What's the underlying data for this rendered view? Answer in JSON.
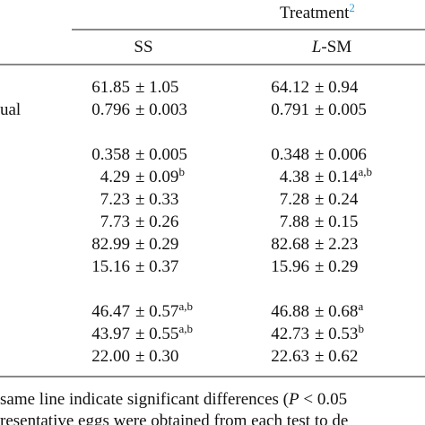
{
  "header": {
    "group": "Treatment",
    "group_note": "2",
    "columns": [
      {
        "prefix": null,
        "text": "SS"
      },
      {
        "prefix": "L",
        "text": "-SM"
      }
    ]
  },
  "sections": [
    [
      {
        "label": null,
        "cells": [
          {
            "mean": "61.85",
            "sd": "± 1.05",
            "sup": null
          },
          {
            "mean": "64.12",
            "sd": "± 0.94",
            "sup": null
          }
        ]
      },
      {
        "label": "ual",
        "cells": [
          {
            "mean": "0.796",
            "sd": "± 0.003",
            "sup": null
          },
          {
            "mean": "0.791",
            "sd": "± 0.005",
            "sup": null
          }
        ]
      }
    ],
    [
      {
        "label": null,
        "cells": [
          {
            "mean": "0.358",
            "sd": "± 0.005",
            "sup": null
          },
          {
            "mean": "0.348",
            "sd": "± 0.006",
            "sup": null
          }
        ]
      },
      {
        "label": null,
        "cells": [
          {
            "mean": "4.29",
            "sd": "± 0.09",
            "sup": "b"
          },
          {
            "mean": "4.38",
            "sd": "± 0.14",
            "sup": "a,b"
          }
        ]
      },
      {
        "label": null,
        "cells": [
          {
            "mean": "7.23",
            "sd": "± 0.33",
            "sup": null
          },
          {
            "mean": "7.28",
            "sd": "± 0.24",
            "sup": null
          }
        ]
      },
      {
        "label": null,
        "cells": [
          {
            "mean": "7.73",
            "sd": "± 0.26",
            "sup": null
          },
          {
            "mean": "7.88",
            "sd": "± 0.15",
            "sup": null
          }
        ]
      },
      {
        "label": null,
        "cells": [
          {
            "mean": "82.99",
            "sd": "± 0.29",
            "sup": null
          },
          {
            "mean": "82.68",
            "sd": "± 2.23",
            "sup": null
          }
        ]
      },
      {
        "label": null,
        "cells": [
          {
            "mean": "15.16",
            "sd": "± 0.37",
            "sup": null
          },
          {
            "mean": "15.96",
            "sd": "± 0.29",
            "sup": null
          }
        ]
      }
    ],
    [
      {
        "label": null,
        "cells": [
          {
            "mean": "46.47",
            "sd": "± 0.57",
            "sup": "a,b"
          },
          {
            "mean": "46.88",
            "sd": "± 0.68",
            "sup": "a"
          }
        ]
      },
      {
        "label": null,
        "cells": [
          {
            "mean": "43.97",
            "sd": "± 0.55",
            "sup": "a,b"
          },
          {
            "mean": "42.73",
            "sd": "± 0.53",
            "sup": "b"
          }
        ]
      },
      {
        "label": null,
        "cells": [
          {
            "mean": "22.00",
            "sd": "± 0.30",
            "sup": null
          },
          {
            "mean": "22.63",
            "sd": "± 0.62",
            "sup": null
          }
        ]
      }
    ]
  ],
  "footnote": [
    {
      "before": "same line indicate significant differences (",
      "italic": "P",
      "after": " < 0.05"
    },
    {
      "before": "resentative eggs were obtained from each test to de",
      "italic": null,
      "after": null
    }
  ]
}
